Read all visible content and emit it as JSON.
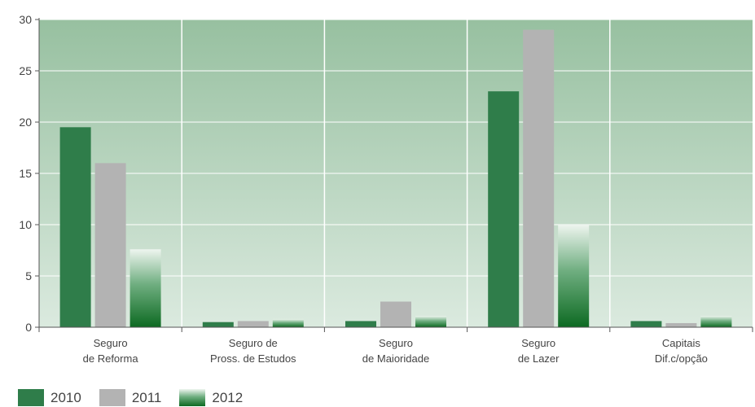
{
  "chart_data": {
    "type": "bar",
    "title": "",
    "xlabel": "",
    "ylabel": "",
    "ylim": [
      0,
      30
    ],
    "yticks": [
      0,
      5,
      10,
      15,
      20,
      25,
      30
    ],
    "grid": true,
    "legend_position": "bottom-left",
    "categories": [
      [
        "Seguro",
        "de Reforma"
      ],
      [
        "Seguro de",
        "Pross. de Estudos"
      ],
      [
        "Seguro",
        "de Maioridade"
      ],
      [
        "Seguro",
        "de Lazer"
      ],
      [
        "Capitais",
        "Dif.c/opção"
      ]
    ],
    "series": [
      {
        "name": "2010",
        "color": "#2f7d4a",
        "values": [
          19.5,
          0.5,
          0.6,
          23,
          0.6
        ]
      },
      {
        "name": "2011",
        "color": "#b3b3b3",
        "values": [
          16,
          0.6,
          2.5,
          29,
          0.4
        ]
      },
      {
        "name": "2012",
        "color": "#1e7a33",
        "gradient": true,
        "values": [
          7.6,
          0.8,
          1.1,
          10,
          1.1
        ]
      }
    ]
  }
}
